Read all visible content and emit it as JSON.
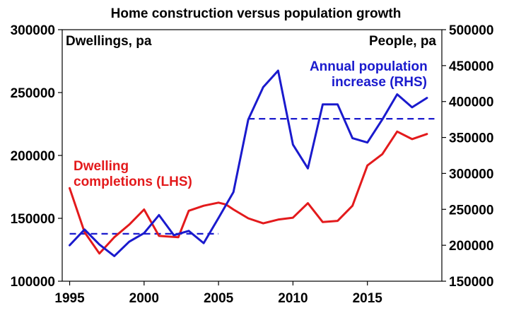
{
  "chart_data": {
    "type": "line",
    "title": "Home construction versus population growth",
    "left_axis_title": "Dwellings, pa",
    "right_axis_title": "People, pa",
    "x_ticks": [
      "1995",
      "2000",
      "2005",
      "2010",
      "2015"
    ],
    "x_range": [
      1994.5,
      2020.0
    ],
    "y_left": {
      "min": 100000,
      "max": 300000,
      "ticks": [
        "100000",
        "150000",
        "200000",
        "250000",
        "300000"
      ]
    },
    "y_right": {
      "min": 150000,
      "max": 500000,
      "ticks": [
        "150000",
        "200000",
        "250000",
        "300000",
        "350000",
        "400000",
        "450000",
        "500000"
      ]
    },
    "series": [
      {
        "name": "Dwelling completions (LHS)",
        "label_lines": [
          "Dwelling",
          "completions (LHS)"
        ],
        "axis": "left",
        "color": "#e31a1c",
        "points": [
          [
            1995.0,
            174000
          ],
          [
            1996.0,
            139000
          ],
          [
            1997.0,
            122000
          ],
          [
            1998.0,
            135000
          ],
          [
            1999.0,
            145000
          ],
          [
            2000.0,
            157000
          ],
          [
            2001.0,
            136000
          ],
          [
            2002.3,
            135000
          ],
          [
            2003.0,
            156000
          ],
          [
            2004.0,
            160000
          ],
          [
            2005.0,
            162500
          ],
          [
            2005.5,
            161000
          ],
          [
            2006.0,
            157000
          ],
          [
            2007.0,
            150000
          ],
          [
            2008.0,
            146000
          ],
          [
            2009.0,
            149000
          ],
          [
            2010.0,
            150500
          ],
          [
            2011.0,
            162000
          ],
          [
            2012.0,
            147000
          ],
          [
            2013.0,
            148000
          ],
          [
            2014.0,
            160000
          ],
          [
            2015.0,
            192000
          ],
          [
            2016.0,
            201000
          ],
          [
            2017.0,
            219000
          ],
          [
            2018.0,
            213000
          ],
          [
            2019.0,
            217000
          ]
        ]
      },
      {
        "name": "Annual population increase (RHS)",
        "label_lines": [
          "Annual population",
          "increase (RHS)"
        ],
        "axis": "right",
        "color": "#1a1acd",
        "points": [
          [
            1995.0,
            200000
          ],
          [
            1996.0,
            222000
          ],
          [
            1997.0,
            201000
          ],
          [
            1998.0,
            185000
          ],
          [
            1999.0,
            205000
          ],
          [
            2000.0,
            217000
          ],
          [
            2001.0,
            242000
          ],
          [
            2002.0,
            214000
          ],
          [
            2003.0,
            220000
          ],
          [
            2004.0,
            203000
          ],
          [
            2005.0,
            238000
          ],
          [
            2006.0,
            274000
          ],
          [
            2007.0,
            375000
          ],
          [
            2008.0,
            420000
          ],
          [
            2009.0,
            443000
          ],
          [
            2010.0,
            340000
          ],
          [
            2011.0,
            307000
          ],
          [
            2012.0,
            396000
          ],
          [
            2013.0,
            396000
          ],
          [
            2014.0,
            349000
          ],
          [
            2015.0,
            343000
          ],
          [
            2016.0,
            375000
          ],
          [
            2017.0,
            410000
          ],
          [
            2018.0,
            392000
          ],
          [
            2019.0,
            405000
          ]
        ],
        "reference_lines": [
          {
            "x_start": 1995.0,
            "x_end": 2005.0,
            "y": 216000
          },
          {
            "x_start": 2007.0,
            "x_end": 2019.5,
            "y": 376000
          }
        ]
      }
    ]
  }
}
